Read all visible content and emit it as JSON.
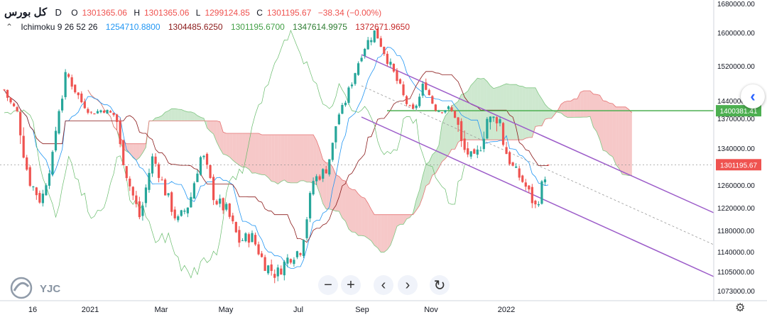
{
  "legend": {
    "symbol": "کل بورس",
    "timeframe": "D",
    "open_label": "O",
    "open": "1301365.06",
    "high_label": "H",
    "high": "1301365.06",
    "low_label": "L",
    "low": "1299124.85",
    "close_label": "C",
    "close": "1301195.67",
    "change": "−38.34 (−0.00%)"
  },
  "ichimoku": {
    "label": "Ichimoku 9 26 52 26",
    "v1": "1254710.8800",
    "v2": "1304485.6250",
    "v3": "1301195.6700",
    "v4": "1347614.9975",
    "v5": "1372671.9650"
  },
  "colors": {
    "up": "#26a69a",
    "down": "#ef5350",
    "conversion": "#2196f3",
    "base": "#8b1a1a",
    "lagging": "#66bb6a",
    "channel": "#9c5cc9",
    "horizontal": "#4caf50",
    "cloud_bull": "#a5d6a7",
    "cloud_bear": "#ef9a9a",
    "price_label": "#ef5350"
  },
  "chart_data": {
    "type": "candlestick",
    "title": "کل بورس",
    "xlabel": "",
    "ylabel": "",
    "y_ticks": [
      "1680000.00",
      "1600000.00",
      "1520000.00",
      "1440000.00",
      "1370000.00",
      "1340000.00",
      "1300000.00",
      "1260000.00",
      "1220000.00",
      "1180000.00",
      "1140000.00",
      "1105000.00",
      "1073000.00"
    ],
    "x_ticks": [
      "16",
      "2021",
      "Mar",
      "May",
      "Jul",
      "Sep",
      "Nov",
      "2022"
    ],
    "ylim": [
      1060000,
      1690000
    ],
    "grid": false,
    "current_price": 1301195.67,
    "current_price_label": "1301195.67",
    "horizontal_level": 1400381.41,
    "horizontal_level_label": "1400381.41",
    "last_candle": {
      "open": 1301365.06,
      "high": 1301365.06,
      "low": 1299124.85,
      "close": 1301195.67
    },
    "close_path": [
      1465000,
      1400000,
      1270000,
      1230000,
      1330000,
      1505000,
      1450000,
      1390000,
      1405000,
      1380000,
      1270000,
      1200000,
      1320000,
      1250000,
      1195000,
      1230000,
      1330000,
      1235000,
      1215000,
      1160000,
      1170000,
      1120000,
      1100000,
      1130000,
      1145000,
      1270000,
      1290000,
      1380000,
      1475000,
      1560000,
      1605000,
      1535000,
      1470000,
      1395000,
      1485000,
      1400000,
      1410000,
      1340000,
      1315000,
      1370000,
      1375000,
      1300000,
      1265000,
      1220000,
      1301195.67
    ],
    "ichimoku_values": {
      "conversion": 1254710.88,
      "base": 1304485.625,
      "lagging": 1301195.67,
      "span_a": 1347614.9975,
      "span_b": 1372671.965
    }
  },
  "controls": {
    "zoom_out": "−",
    "zoom_in": "+",
    "scroll_left": "‹",
    "scroll_right": "›",
    "reset": "↻",
    "side_toggle": "‹",
    "settings": "⚙"
  },
  "watermark": {
    "text": "YJC"
  }
}
